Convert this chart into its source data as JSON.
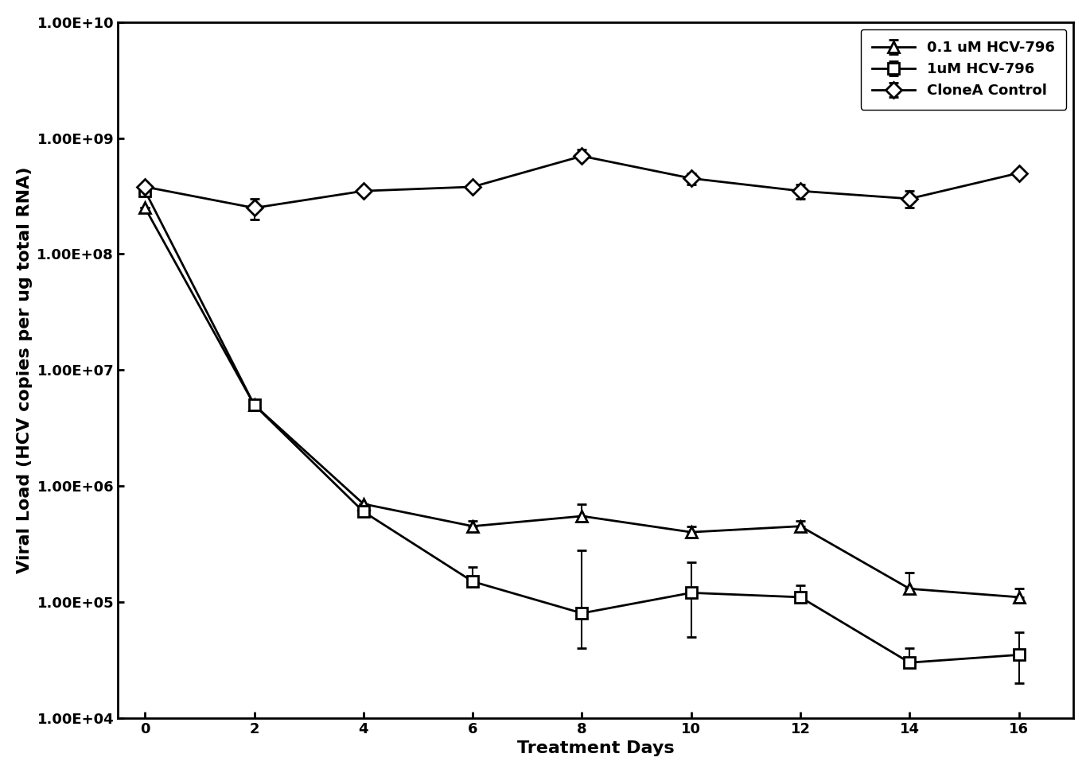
{
  "x": [
    0,
    2,
    4,
    6,
    8,
    10,
    12,
    14,
    16
  ],
  "series": {
    "0.1 uM HCV-796": {
      "y": [
        250000000.0,
        5000000.0,
        700000.0,
        450000.0,
        550000.0,
        400000.0,
        450000.0,
        130000.0,
        110000.0
      ],
      "yerr_low": [
        0,
        0,
        0,
        0,
        0,
        0,
        0,
        0,
        0
      ],
      "yerr_high": [
        0,
        0,
        0,
        50000.0,
        150000.0,
        50000.0,
        50000.0,
        50000.0,
        20000.0
      ],
      "marker": "^",
      "label": "0.1 uM HCV-796"
    },
    "1uM HCV-796": {
      "y": [
        350000000.0,
        5000000.0,
        600000.0,
        150000.0,
        80000.0,
        120000.0,
        110000.0,
        30000.0,
        35000.0
      ],
      "yerr_low": [
        0,
        0,
        0,
        0,
        40000.0,
        70000.0,
        0,
        0,
        15000.0
      ],
      "yerr_high": [
        0,
        0,
        0,
        50000.0,
        200000.0,
        100000.0,
        30000.0,
        10000.0,
        20000.0
      ],
      "marker": "s",
      "label": "1uM HCV-796"
    },
    "CloneA Control": {
      "y": [
        380000000.0,
        250000000.0,
        350000000.0,
        380000000.0,
        700000000.0,
        450000000.0,
        350000000.0,
        300000000.0,
        500000000.0
      ],
      "yerr_low": [
        0,
        50000000.0,
        0,
        0,
        50000000.0,
        50000000.0,
        50000000.0,
        50000000.0,
        0
      ],
      "yerr_high": [
        0,
        50000000.0,
        0,
        0,
        100000000.0,
        50000000.0,
        50000000.0,
        50000000.0,
        0
      ],
      "marker": "D",
      "label": "CloneA Control"
    }
  },
  "ylabel": "Viral Load (HCV copies per ug total RNA)",
  "xlabel": "Treatment Days",
  "ylim_low": 10000.0,
  "ylim_high": 10000000000.0,
  "yticks": [
    10000.0,
    100000.0,
    1000000.0,
    10000000.0,
    100000000.0,
    1000000000.0,
    10000000000.0
  ],
  "ytick_labels": [
    "1.00E+04",
    "1.00E+05",
    "1.00E+06",
    "1.00E+07",
    "1.00E+08",
    "1.00E+09",
    "1.00E+10"
  ],
  "xticks": [
    0,
    2,
    4,
    6,
    8,
    10,
    12,
    14,
    16
  ],
  "line_color": "#000000",
  "background_color": "#ffffff",
  "legend_loc": "upper right",
  "title_fontsize": 14,
  "label_fontsize": 16,
  "tick_fontsize": 13,
  "legend_fontsize": 13,
  "linewidth": 2.0,
  "markersize": 10
}
